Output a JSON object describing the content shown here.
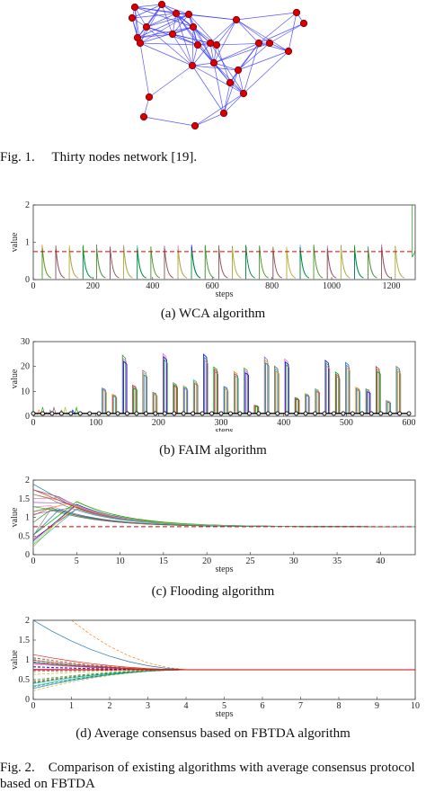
{
  "fig1": {
    "caption_num": "Fig. 1.",
    "caption_text": "Thirty nodes network [19]."
  },
  "fig2": {
    "caption_num": "Fig. 2.",
    "caption_text": "Comparison of existing algorithms with average consensus protocol",
    "caption_text2": "based on FBTDA"
  },
  "colors": {
    "edge": "#3a3aff",
    "node": "#d40000",
    "ref": "#e00000"
  },
  "chart_data": [
    {
      "type": "line",
      "caption": "(a) WCA algorithm",
      "xlabel": "steps",
      "ylabel": "value",
      "xlim": [
        0,
        1280
      ],
      "ylim": [
        0,
        2
      ],
      "xticks": [
        0,
        200,
        400,
        600,
        800,
        1000,
        1200
      ],
      "yticks": [
        0,
        1,
        2
      ],
      "reference_value": 0.75
    },
    {
      "type": "line",
      "caption": "(b) FAIM algorithm",
      "xlabel": "steps",
      "ylabel": "value",
      "xlim": [
        0,
        610
      ],
      "ylim": [
        0,
        30
      ],
      "xticks": [
        0,
        100,
        200,
        300,
        400,
        500,
        600
      ],
      "yticks": [
        0,
        10,
        20,
        30
      ],
      "reference_value": 0.75
    },
    {
      "type": "line",
      "caption": "(c) Flooding algorithm",
      "xlabel": "steps",
      "ylabel": "value",
      "xlim": [
        0,
        44
      ],
      "ylim": [
        0,
        2
      ],
      "xticks": [
        0,
        5,
        10,
        15,
        20,
        25,
        30,
        35,
        40
      ],
      "yticks": [
        0,
        0.5,
        1,
        1.5,
        2
      ],
      "reference_value": 0.75
    },
    {
      "type": "line",
      "caption": "(d) Average consensus based on FBTDA algorithm",
      "xlabel": "steps",
      "ylabel": "value",
      "xlim": [
        0,
        10
      ],
      "ylim": [
        0,
        2
      ],
      "xticks": [
        0,
        1,
        2,
        3,
        4,
        5,
        6,
        7,
        8,
        9,
        10
      ],
      "yticks": [
        0,
        0.5,
        1,
        1.5,
        2
      ],
      "reference_value": 0.75
    }
  ]
}
